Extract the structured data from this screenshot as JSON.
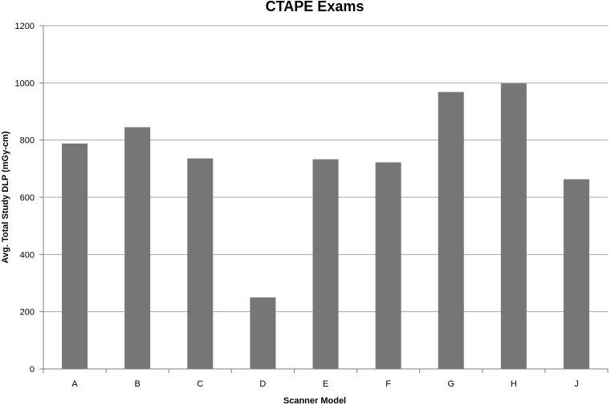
{
  "chart_data": {
    "type": "bar",
    "title": "CTAPE Exams",
    "xlabel": "Scanner Model",
    "ylabel": "Avg. Total Study DLP (mGy-cm)",
    "categories": [
      "A",
      "B",
      "C",
      "D",
      "E",
      "F",
      "G",
      "H",
      "J"
    ],
    "values": [
      788,
      845,
      736,
      250,
      733,
      722,
      968,
      998,
      663
    ],
    "ylim": [
      0,
      1200
    ],
    "yticks": [
      0,
      200,
      400,
      600,
      800,
      1000,
      1200
    ],
    "grid": true,
    "legend": "none",
    "colors": {
      "bar": "#767676",
      "grid": "#a6a6a6",
      "axis": "#808080"
    }
  }
}
